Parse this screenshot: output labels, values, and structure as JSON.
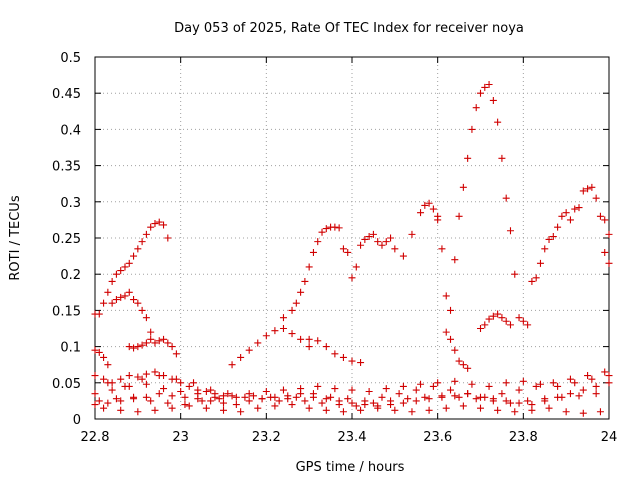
{
  "chart_data": {
    "type": "scatter",
    "title": "Day 053 of 2025, Rate Of TEC Index for receiver noya",
    "xlabel": "GPS time / hours",
    "ylabel": "ROTI / TECUs",
    "xlim": [
      22.8,
      24.0
    ],
    "ylim": [
      0,
      0.5
    ],
    "x_ticks": [
      "22.8",
      "23",
      "23.2",
      "23.4",
      "23.6",
      "23.8",
      "24"
    ],
    "y_ticks": [
      "0",
      "0.05",
      "0.1",
      "0.15",
      "0.2",
      "0.25",
      "0.3",
      "0.35",
      "0.4",
      "0.45",
      "0.5"
    ],
    "grid": true,
    "marker": "+",
    "marker_color": "#d00000",
    "series": [
      {
        "x": [
          22.8,
          22.81,
          22.82,
          22.83,
          22.84,
          22.85,
          22.86,
          22.87,
          22.88,
          22.89,
          22.9,
          22.91,
          22.92,
          22.93,
          22.94,
          22.95,
          22.96,
          22.97
        ],
        "y": [
          0.145,
          0.145,
          0.16,
          0.175,
          0.19,
          0.2,
          0.205,
          0.21,
          0.215,
          0.225,
          0.235,
          0.245,
          0.255,
          0.265,
          0.27,
          0.272,
          0.268,
          0.25
        ]
      },
      {
        "x": [
          22.84,
          22.85,
          22.86,
          22.87,
          22.88,
          22.89,
          22.9,
          22.91,
          22.92,
          22.93
        ],
        "y": [
          0.16,
          0.165,
          0.168,
          0.17,
          0.175,
          0.165,
          0.16,
          0.15,
          0.14,
          0.12
        ]
      },
      {
        "x": [
          22.8,
          22.81,
          22.82,
          22.83
        ],
        "y": [
          0.095,
          0.092,
          0.085,
          0.075
        ]
      },
      {
        "x": [
          22.88,
          22.89,
          22.9,
          22.91,
          22.92,
          22.93,
          22.94,
          22.95,
          22.96,
          22.97,
          22.98,
          22.99
        ],
        "y": [
          0.1,
          0.098,
          0.1,
          0.102,
          0.105,
          0.11,
          0.105,
          0.108,
          0.11,
          0.105,
          0.1,
          0.09
        ]
      },
      {
        "x": [
          22.8,
          22.82,
          22.84,
          22.86,
          22.88,
          22.9,
          22.92,
          22.94,
          22.96,
          22.98,
          23.0,
          23.02,
          23.04,
          23.06,
          23.08,
          23.1
        ],
        "y": [
          0.06,
          0.055,
          0.05,
          0.055,
          0.06,
          0.058,
          0.062,
          0.065,
          0.06,
          0.055,
          0.05,
          0.045,
          0.04,
          0.038,
          0.035,
          0.032
        ]
      },
      {
        "x": [
          23.12,
          23.14,
          23.16,
          23.18,
          23.2,
          23.22,
          23.24,
          23.26,
          23.28,
          23.3
        ],
        "y": [
          0.075,
          0.085,
          0.095,
          0.105,
          0.115,
          0.122,
          0.125,
          0.118,
          0.11,
          0.1
        ]
      },
      {
        "x": [
          23.24,
          23.26,
          23.27,
          23.28,
          23.29,
          23.3,
          23.31,
          23.32,
          23.33,
          23.34,
          23.35,
          23.36,
          23.37
        ],
        "y": [
          0.14,
          0.15,
          0.16,
          0.175,
          0.19,
          0.21,
          0.23,
          0.245,
          0.258,
          0.263,
          0.265,
          0.265,
          0.264
        ]
      },
      {
        "x": [
          23.3,
          23.32,
          23.34,
          23.36,
          23.38,
          23.4,
          23.42
        ],
        "y": [
          0.11,
          0.108,
          0.1,
          0.09,
          0.085,
          0.08,
          0.078
        ]
      },
      {
        "x": [
          23.38,
          23.39,
          23.4,
          23.41,
          23.42,
          23.43,
          23.44,
          23.45,
          23.46,
          23.47,
          23.48,
          23.49,
          23.5,
          23.52,
          23.54,
          23.56,
          23.57,
          23.58,
          23.59,
          23.6
        ],
        "y": [
          0.235,
          0.23,
          0.195,
          0.21,
          0.24,
          0.248,
          0.252,
          0.255,
          0.245,
          0.24,
          0.245,
          0.25,
          0.235,
          0.225,
          0.255,
          0.285,
          0.295,
          0.298,
          0.29,
          0.28
        ]
      },
      {
        "x": [
          23.6,
          23.61,
          23.62,
          23.63,
          23.64,
          23.65,
          23.66,
          23.67,
          23.68,
          23.69,
          23.7,
          23.71,
          23.72,
          23.73,
          23.74,
          23.75
        ],
        "y": [
          0.275,
          0.235,
          0.17,
          0.15,
          0.22,
          0.28,
          0.32,
          0.36,
          0.4,
          0.43,
          0.45,
          0.458,
          0.462,
          0.44,
          0.41,
          0.36
        ]
      },
      {
        "x": [
          23.76,
          23.77,
          23.78,
          23.79,
          23.8,
          23.81
        ],
        "y": [
          0.305,
          0.26,
          0.2,
          0.14,
          0.135,
          0.13
        ]
      },
      {
        "x": [
          23.7,
          23.71,
          23.72,
          23.73,
          23.74,
          23.75,
          23.76,
          23.77
        ],
        "y": [
          0.125,
          0.13,
          0.138,
          0.142,
          0.145,
          0.14,
          0.135,
          0.13
        ]
      },
      {
        "x": [
          23.62,
          23.63,
          23.64,
          23.65,
          23.66,
          23.67
        ],
        "y": [
          0.12,
          0.11,
          0.095,
          0.08,
          0.075,
          0.07
        ]
      },
      {
        "x": [
          23.82,
          23.83,
          23.84,
          23.85,
          23.86,
          23.87,
          23.88,
          23.89,
          23.9,
          23.91,
          23.92,
          23.93,
          23.94,
          23.95,
          23.96,
          23.97,
          23.98,
          23.99,
          24.0
        ],
        "y": [
          0.19,
          0.195,
          0.215,
          0.235,
          0.248,
          0.252,
          0.265,
          0.28,
          0.285,
          0.275,
          0.29,
          0.292,
          0.315,
          0.318,
          0.32,
          0.305,
          0.28,
          0.275,
          0.255
        ]
      },
      {
        "x": [
          23.99,
          24.0
        ],
        "y": [
          0.23,
          0.215
        ]
      },
      {
        "x": [
          22.8,
          22.84,
          22.88,
          22.92,
          22.96,
          23.0,
          23.04,
          23.08,
          23.12,
          23.16,
          23.2,
          23.24,
          23.28,
          23.32,
          23.36,
          23.4,
          23.44,
          23.48,
          23.52,
          23.56,
          23.6,
          23.64,
          23.68,
          23.72,
          23.76,
          23.8,
          23.84,
          23.88,
          23.92,
          23.96,
          24.0
        ],
        "y": [
          0.035,
          0.04,
          0.045,
          0.048,
          0.042,
          0.038,
          0.035,
          0.03,
          0.032,
          0.035,
          0.038,
          0.04,
          0.042,
          0.045,
          0.042,
          0.04,
          0.038,
          0.042,
          0.045,
          0.048,
          0.05,
          0.052,
          0.048,
          0.045,
          0.05,
          0.052,
          0.048,
          0.045,
          0.05,
          0.055,
          0.06
        ]
      },
      {
        "x": [
          22.81,
          22.85,
          22.89,
          22.93,
          22.97,
          23.01,
          23.05,
          23.09,
          23.13,
          23.17,
          23.21,
          23.25,
          23.29,
          23.33,
          23.37,
          23.41,
          23.45,
          23.49,
          23.53,
          23.57,
          23.61,
          23.65,
          23.69,
          23.73,
          23.77,
          23.81,
          23.85,
          23.89,
          23.93,
          23.97
        ],
        "y": [
          0.025,
          0.028,
          0.03,
          0.025,
          0.022,
          0.02,
          0.025,
          0.028,
          0.03,
          0.032,
          0.03,
          0.028,
          0.025,
          0.022,
          0.02,
          0.018,
          0.022,
          0.025,
          0.028,
          0.03,
          0.032,
          0.03,
          0.028,
          0.025,
          0.022,
          0.025,
          0.028,
          0.03,
          0.032,
          0.035
        ]
      },
      {
        "x": [
          22.82,
          22.86,
          22.9,
          22.94,
          22.98,
          23.02,
          23.06,
          23.1,
          23.14,
          23.18,
          23.22,
          23.26,
          23.3,
          23.34,
          23.38,
          23.42,
          23.46,
          23.5,
          23.54,
          23.58,
          23.62,
          23.66,
          23.7,
          23.74,
          23.78,
          23.82,
          23.86,
          23.9,
          23.94,
          23.98
        ],
        "y": [
          0.015,
          0.012,
          0.01,
          0.012,
          0.015,
          0.018,
          0.015,
          0.012,
          0.01,
          0.015,
          0.018,
          0.02,
          0.015,
          0.012,
          0.01,
          0.012,
          0.015,
          0.012,
          0.01,
          0.012,
          0.015,
          0.018,
          0.015,
          0.012,
          0.01,
          0.012,
          0.015,
          0.01,
          0.008,
          0.01
        ]
      },
      {
        "x": [
          22.83,
          22.87,
          22.91,
          22.95,
          22.99,
          23.03,
          23.07,
          23.11,
          23.15,
          23.19,
          23.23,
          23.27,
          23.31,
          23.35,
          23.39,
          23.43,
          23.47,
          23.51,
          23.55,
          23.59,
          23.63,
          23.67,
          23.71,
          23.75,
          23.79,
          23.83,
          23.87,
          23.91,
          23.95,
          23.99
        ],
        "y": [
          0.05,
          0.045,
          0.055,
          0.06,
          0.055,
          0.05,
          0.04,
          0.035,
          0.03,
          0.028,
          0.025,
          0.03,
          0.035,
          0.03,
          0.028,
          0.025,
          0.03,
          0.035,
          0.04,
          0.045,
          0.04,
          0.035,
          0.03,
          0.035,
          0.04,
          0.045,
          0.05,
          0.055,
          0.06,
          0.065
        ]
      },
      {
        "x": [
          22.8,
          22.83,
          22.86,
          22.89,
          22.92,
          22.95,
          22.98,
          23.01,
          23.04,
          23.07,
          23.1,
          23.13,
          23.16,
          23.19,
          23.22,
          23.25,
          23.28,
          23.31,
          23.34,
          23.37,
          23.4,
          23.43,
          23.46,
          23.49,
          23.52,
          23.55,
          23.58,
          23.61,
          23.64,
          23.67,
          23.7,
          23.73,
          23.76,
          23.79,
          23.82,
          23.85,
          23.88,
          23.91,
          23.94,
          23.97,
          24.0
        ],
        "y": [
          0.02,
          0.022,
          0.025,
          0.028,
          0.03,
          0.035,
          0.032,
          0.03,
          0.028,
          0.025,
          0.022,
          0.02,
          0.025,
          0.028,
          0.03,
          0.032,
          0.035,
          0.03,
          0.028,
          0.025,
          0.022,
          0.02,
          0.018,
          0.02,
          0.022,
          0.025,
          0.028,
          0.03,
          0.032,
          0.035,
          0.03,
          0.028,
          0.025,
          0.022,
          0.02,
          0.025,
          0.03,
          0.035,
          0.04,
          0.045,
          0.05
        ]
      }
    ]
  }
}
